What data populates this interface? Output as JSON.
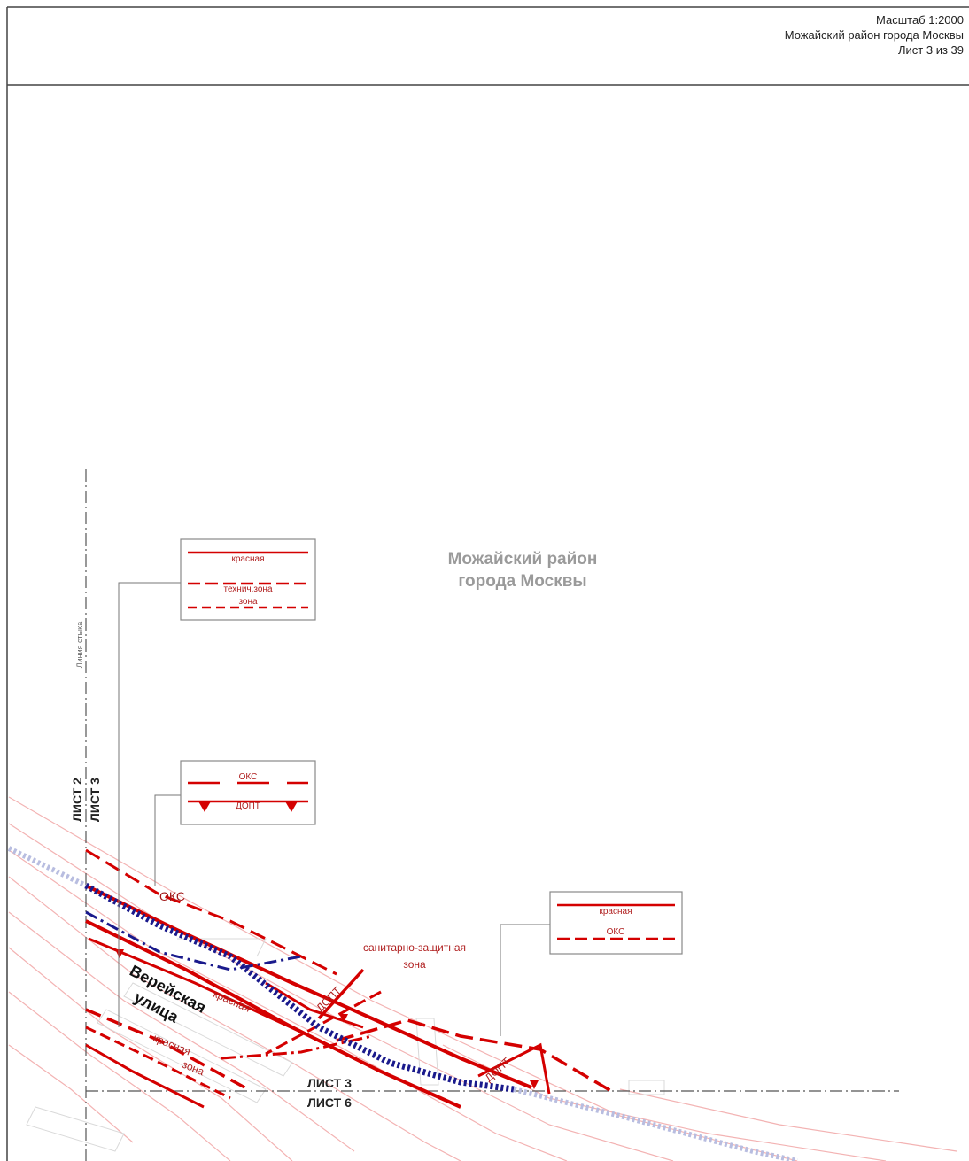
{
  "header": {
    "scale": "Масштаб 1:2000",
    "district": "Можайский район города Москвы",
    "sheet": "Лист 3 из 39"
  },
  "map": {
    "district_label_line1": "Можайский район",
    "district_label_line2": "города Москвы",
    "joint_line_label": "Линия стыка",
    "sheet_left_a": "ЛИСТ 2",
    "sheet_left_b": "ЛИСТ 3",
    "sheet_bottom_a": "ЛИСТ 3",
    "sheet_bottom_b": "ЛИСТ 6",
    "street_line1": "Верейская",
    "street_line2": "улица",
    "oks_label": "ОКС",
    "szz_line1": "санитарно-защитная",
    "szz_line2": "зона",
    "dopt_label": "ДОПТ",
    "krasnaya_label": "красная",
    "zone_label": "зона"
  },
  "legends": {
    "box1": {
      "row1": "красная",
      "row2": "технич.зона",
      "row3": "зона"
    },
    "box2": {
      "row1": "ОКС",
      "row2": "ДОПТ"
    },
    "box3": {
      "row1": "красная",
      "row2": "ОКС"
    }
  },
  "colors": {
    "red": "#d40000",
    "lightred": "#f2a0a0",
    "blue": "#1a1a8c",
    "lightblue": "#b8bde0",
    "frame": "#444444"
  }
}
